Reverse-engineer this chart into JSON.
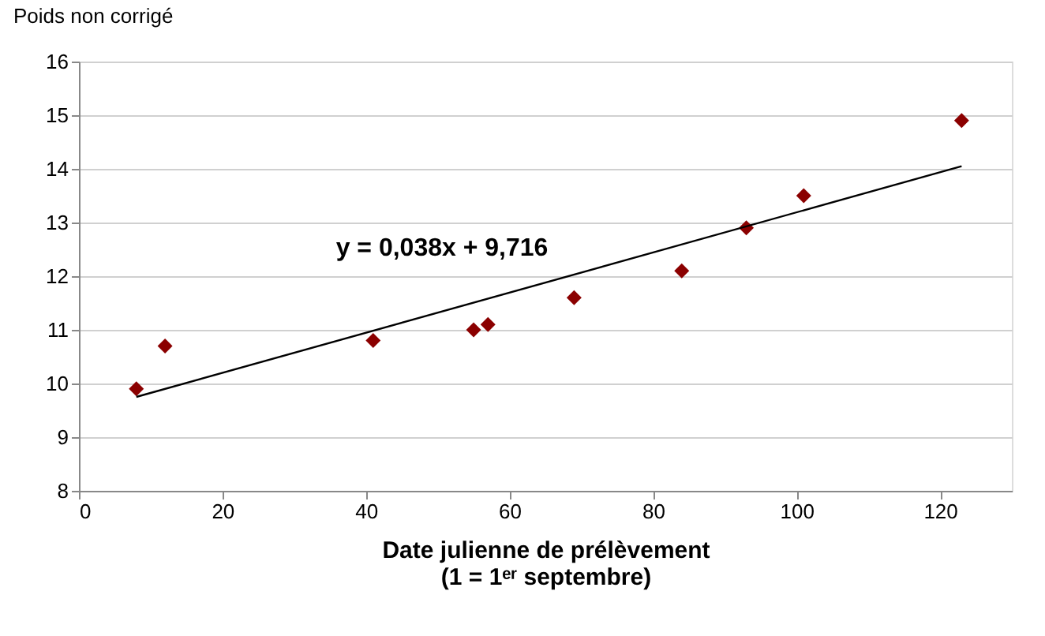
{
  "chart_data": {
    "type": "scatter",
    "ylabel": "Poids non corrigé",
    "xlabel": "Date julienne de prélèvement\n(1 = 1ᵉʳ septembre)",
    "xlim": [
      0,
      130
    ],
    "xticks": [
      0,
      20,
      40,
      60,
      80,
      100,
      120
    ],
    "ylim": [
      8,
      16
    ],
    "yticks": [
      8,
      9,
      10,
      11,
      12,
      13,
      14,
      15,
      16
    ],
    "grid": "y",
    "series": [
      {
        "color": "#8b0000",
        "marker": "diamond",
        "x": [
          8,
          12,
          41,
          55,
          57,
          69,
          84,
          93,
          101,
          123
        ],
        "values": [
          9.9,
          10.7,
          10.8,
          11.0,
          11.1,
          11.6,
          12.1,
          12.9,
          13.5,
          14.9
        ]
      },
      {
        "type": "line",
        "color": "#000000",
        "line_style": "solid",
        "x": [
          8,
          123
        ],
        "values": [
          9.75,
          14.05
        ]
      }
    ],
    "annotations": [
      "y = 0,038x + 9,716"
    ]
  }
}
